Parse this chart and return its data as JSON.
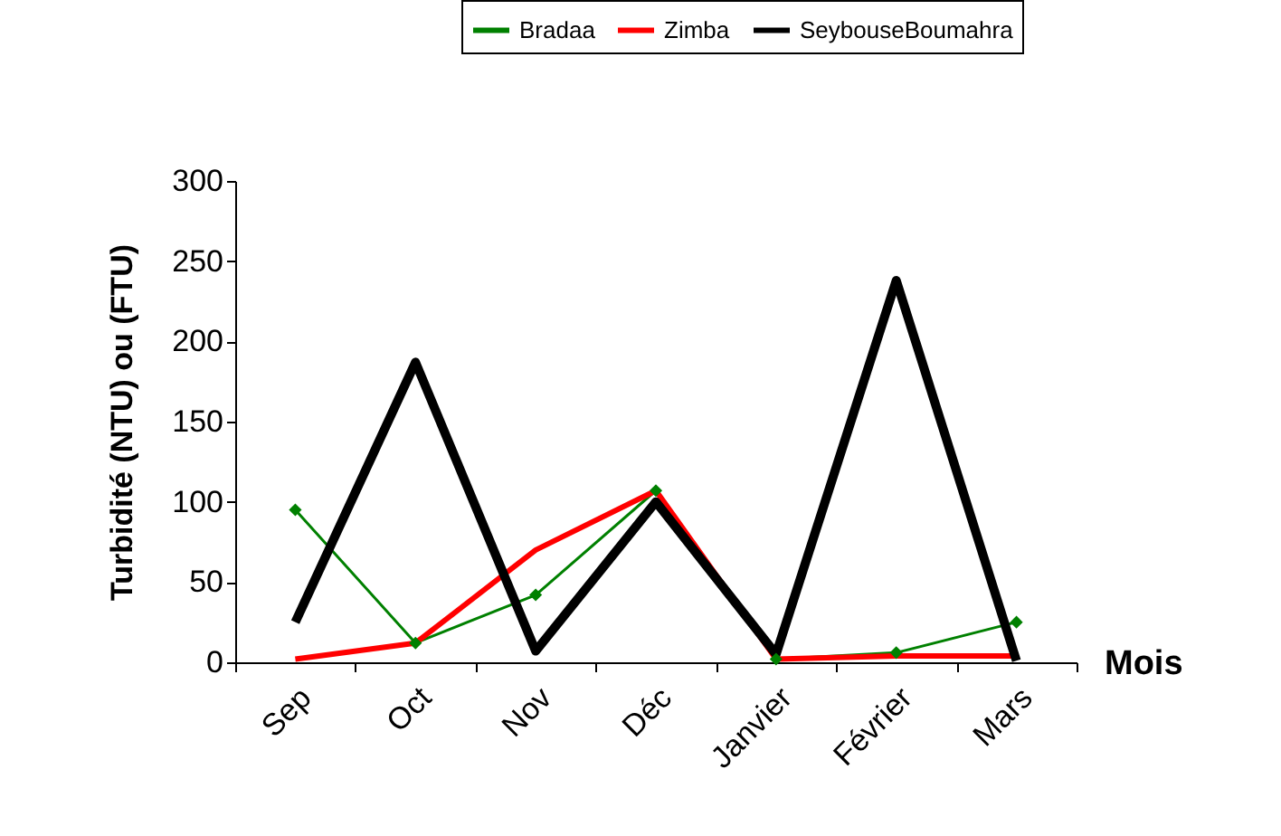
{
  "chart_data": {
    "type": "line",
    "xlabel": "Mois",
    "ylabel": "Turbidité (NTU) ou (FTU)",
    "categories": [
      "Sep",
      "Oct",
      "Nov",
      "Déc",
      "Janvier",
      "Février",
      "Mars"
    ],
    "series": [
      {
        "name": "Bradaa",
        "color": "#008000",
        "marker": "diamond",
        "values": [
          95,
          12,
          42,
          107,
          2,
          6,
          25
        ]
      },
      {
        "name": "Zimba",
        "color": "#ff0000",
        "marker": "none",
        "values": [
          2,
          12,
          70,
          107,
          2,
          4,
          4
        ]
      },
      {
        "name": "SeybouseBoumahra",
        "color": "#000000",
        "marker": "none",
        "values": [
          25,
          187,
          7,
          100,
          5,
          238,
          1
        ]
      }
    ],
    "ylim": [
      0,
      300
    ],
    "yticks": [
      0,
      50,
      100,
      150,
      200,
      250,
      300
    ],
    "grid": false,
    "legend": "top right"
  }
}
